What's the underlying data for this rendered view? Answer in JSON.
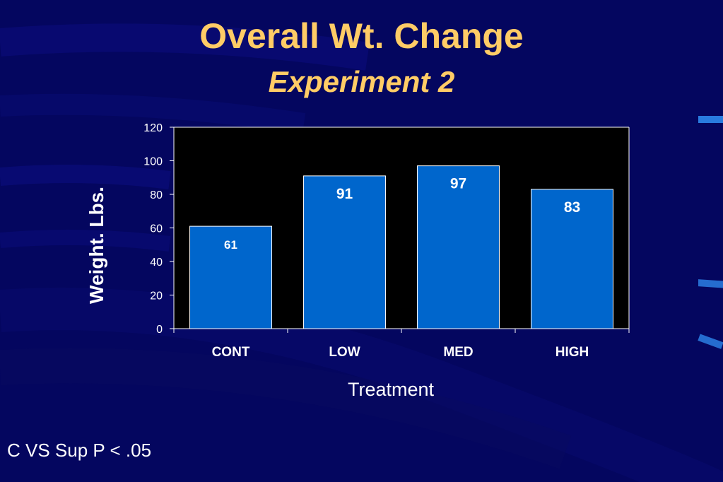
{
  "slide": {
    "title": "Overall Wt. Change",
    "subtitle": "Experiment 2",
    "footnote": "C VS Sup P < .05"
  },
  "colors": {
    "background": "#04065f",
    "title": "#ffcc66",
    "plot_area": "#000000",
    "bar": "#0066cc",
    "text": "#ffffff"
  },
  "chart_data": {
    "type": "bar",
    "categories": [
      "CONT",
      "LOW",
      "MED",
      "HIGH"
    ],
    "values": [
      61,
      91,
      97,
      83
    ],
    "data_labels": [
      "61",
      "91",
      "97",
      "83"
    ],
    "xlabel": "Treatment",
    "ylabel": "Weight. Lbs.",
    "ylim": [
      0,
      120
    ],
    "yticks": [
      0,
      20,
      40,
      60,
      80,
      100,
      120
    ],
    "grid": false,
    "legend": "none"
  }
}
